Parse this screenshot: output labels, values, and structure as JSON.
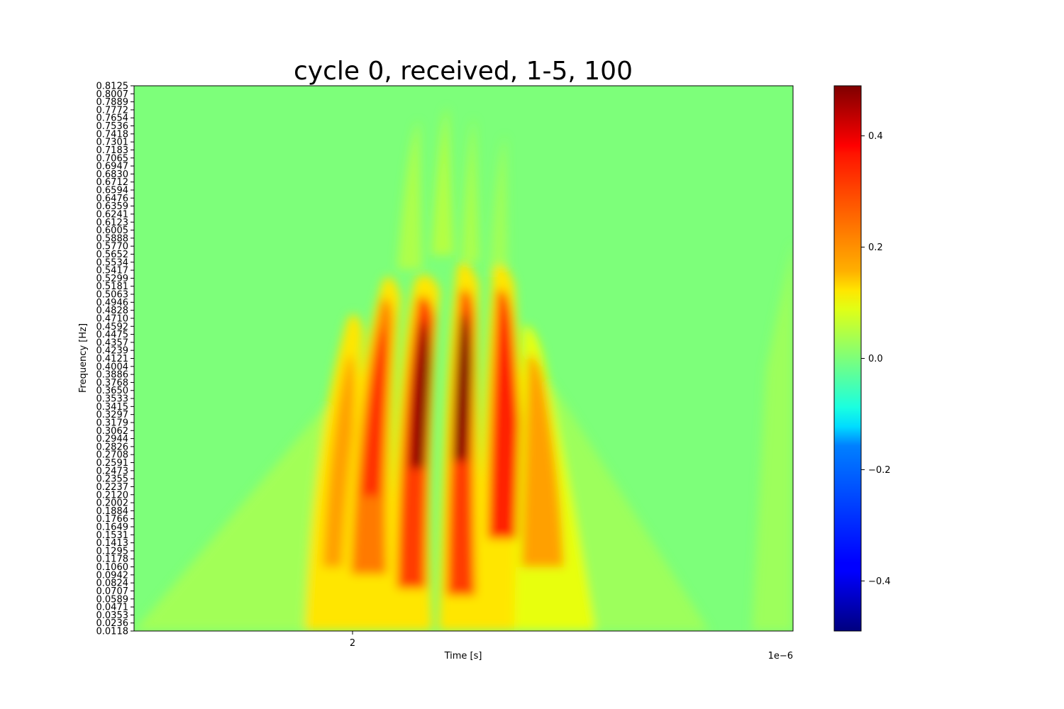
{
  "chart_data": {
    "type": "heatmap",
    "title": "cycle 0, received, 1-5, 100",
    "xlabel": "Time [s]",
    "ylabel": "Frequency [Hz]",
    "x_offset_text": "1e−6",
    "x_ticks": [
      "2"
    ],
    "y_ticks": [
      "0.0118",
      "0.0236",
      "0.0353",
      "0.0471",
      "0.0589",
      "0.0707",
      "0.0824",
      "0.0942",
      "0.1060",
      "0.1178",
      "0.1295",
      "0.1413",
      "0.1531",
      "0.1649",
      "0.1766",
      "0.1884",
      "0.2002",
      "0.2120",
      "0.2237",
      "0.2355",
      "0.2473",
      "0.2591",
      "0.2708",
      "0.2826",
      "0.2944",
      "0.3062",
      "0.3179",
      "0.3297",
      "0.3415",
      "0.3533",
      "0.3650",
      "0.3768",
      "0.3886",
      "0.4004",
      "0.4121",
      "0.4239",
      "0.4357",
      "0.4475",
      "0.4592",
      "0.4710",
      "0.4828",
      "0.4946",
      "0.5063",
      "0.5181",
      "0.5299",
      "0.5417",
      "0.5534",
      "0.5652",
      "0.5770",
      "0.5888",
      "0.6005",
      "0.6123",
      "0.6241",
      "0.6359",
      "0.6476",
      "0.6594",
      "0.6712",
      "0.6830",
      "0.6947",
      "0.7065",
      "0.7183",
      "0.7301",
      "0.7418",
      "0.7536",
      "0.7654",
      "0.7772",
      "0.7889",
      "0.8007",
      "0.8125"
    ],
    "ylim": [
      0.0118,
      0.8125
    ],
    "colormap": "jet",
    "colorbar": {
      "range": [
        -0.49,
        0.49
      ],
      "ticks": [
        {
          "value": 0.4,
          "label": "0.4"
        },
        {
          "value": 0.2,
          "label": "0.2"
        },
        {
          "value": 0.0,
          "label": "0.0"
        },
        {
          "value": -0.2,
          "label": "−0.2"
        },
        {
          "value": -0.4,
          "label": "−0.4"
        }
      ]
    },
    "grid": false,
    "legend": "none"
  }
}
